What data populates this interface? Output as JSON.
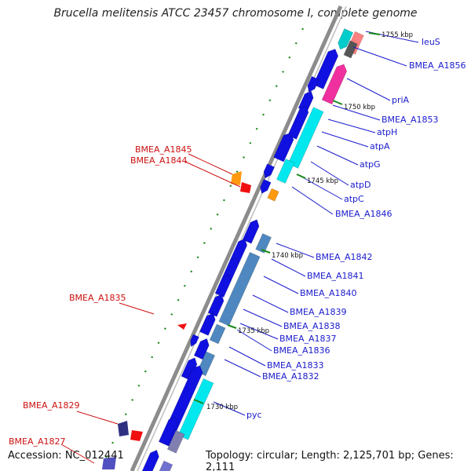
{
  "title": "Brucella melitensis ATCC 23457 chromosome I, complete genome",
  "accession": "Accession: NC_012441",
  "summary": "Topology: circular; Length: 2,125,701 bp; Genes: 2,111",
  "colors": {
    "backbone": "#8c8c8c",
    "gene_blue": "#1010e0",
    "gene_cyan": "#00e8ee",
    "gene_steel": "#4f88c0",
    "gene_magenta": "#f0309f",
    "gene_orange": "#ff9a10",
    "gene_red": "#f01010",
    "label_blue": "#1a1acc",
    "label_red": "#cc1010",
    "ticks_green": "#1a8a1a"
  },
  "kbp_marks": [
    "1755 kbp",
    "1750 kbp",
    "1745 kbp",
    "1740 kbp",
    "1735 kbp",
    "1730 kbp"
  ],
  "right_labels": [
    "leuS",
    "BMEA_A1856",
    "priA",
    "BMEA_A1853",
    "atpH",
    "atpA",
    "atpG",
    "atpD",
    "atpC",
    "BMEA_A1846",
    "BMEA_A1842",
    "BMEA_A1841",
    "BMEA_A1840",
    "BMEA_A1839",
    "BMEA_A1838",
    "BMEA_A1837",
    "BMEA_A1836",
    "BMEA_A1833",
    "BMEA_A1832",
    "pyc"
  ],
  "left_labels": [
    "BMEA_A1845",
    "BMEA_A1844",
    "BMEA_A1835",
    "BMEA_A1829",
    "BMEA_A1827"
  ]
}
